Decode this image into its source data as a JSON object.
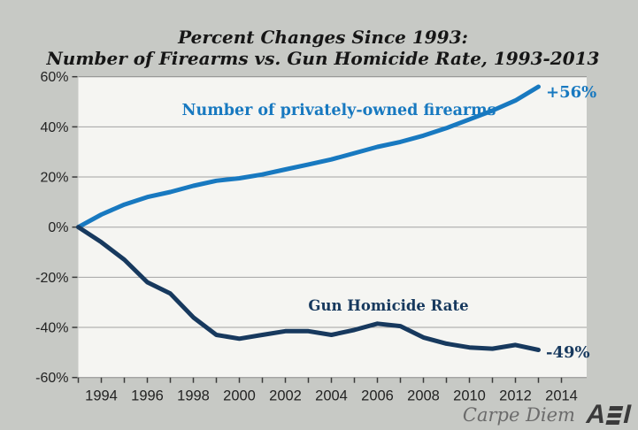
{
  "title": {
    "line1": "Percent Changes Since 1993:",
    "line2": "Number of Firearms vs. Gun Homicide Rate, 1993-2013"
  },
  "footer": {
    "watermark": "Carpe Diem",
    "logo_a": "A",
    "logo_i": "I"
  },
  "colors": {
    "page_background": "#c7c9c5",
    "plot_background": "#f5f5f2",
    "gridline": "#a3a3a3",
    "plot_edge": "#8a8a8a",
    "tick": "#3a3a3a",
    "axis_text": "#232323",
    "title_text": "#161616",
    "firearms_line": "#1879c0",
    "homicide_line": "#17395e",
    "watermark_text": "#6b6b6b",
    "logo_color": "#3a3a3a"
  },
  "chart_data": {
    "type": "line",
    "title": "Percent Changes Since 1993: Number of Firearms vs. Gun Homicide Rate, 1993-2013",
    "xlabel": "",
    "ylabel": "",
    "x": [
      1993,
      1994,
      1995,
      1996,
      1997,
      1998,
      1999,
      2000,
      2001,
      2002,
      2003,
      2004,
      2005,
      2006,
      2007,
      2008,
      2009,
      2010,
      2011,
      2012,
      2013
    ],
    "series": [
      {
        "name": "Number of privately-owned firearms",
        "end_label": "+56%",
        "color": "#1879c0",
        "values": [
          0,
          5,
          9,
          12,
          14,
          16.5,
          18.5,
          19.5,
          21,
          23,
          25,
          27,
          29.5,
          32,
          34,
          36.5,
          39.5,
          43,
          46.5,
          50.5,
          56
        ]
      },
      {
        "name": "Gun Homicide Rate",
        "end_label": "-49%",
        "color": "#17395e",
        "values": [
          0,
          -6,
          -13,
          -22,
          -26.5,
          -36,
          -43,
          -44.5,
          -43,
          -41.5,
          -41.5,
          -43,
          -41,
          -38.5,
          -39.5,
          -44,
          -46.5,
          -48,
          -48.5,
          -47,
          -49
        ]
      }
    ],
    "ylim": [
      -60,
      60
    ],
    "xlim": [
      1993,
      2015.1
    ],
    "y_ticks": [
      {
        "value": 60,
        "label": "60%"
      },
      {
        "value": 40,
        "label": "40%"
      },
      {
        "value": 20,
        "label": "20%"
      },
      {
        "value": 0,
        "label": "0%"
      },
      {
        "value": -20,
        "label": "-20%"
      },
      {
        "value": -40,
        "label": "-40%"
      },
      {
        "value": -60,
        "label": "-60%"
      }
    ],
    "x_tick_labels": [
      "1994",
      "1996",
      "1998",
      "2000",
      "2002",
      "2004",
      "2006",
      "2008",
      "2010",
      "2012",
      "2014"
    ],
    "x_minor_tick_years": [
      1993,
      1994,
      1995,
      1996,
      1997,
      1998,
      1999,
      2000,
      2001,
      2002,
      2003,
      2004,
      2005,
      2006,
      2007,
      2008,
      2009,
      2010,
      2011,
      2012,
      2013,
      2014
    ],
    "grid": "horizontal-only",
    "legend": "inline-labels"
  }
}
